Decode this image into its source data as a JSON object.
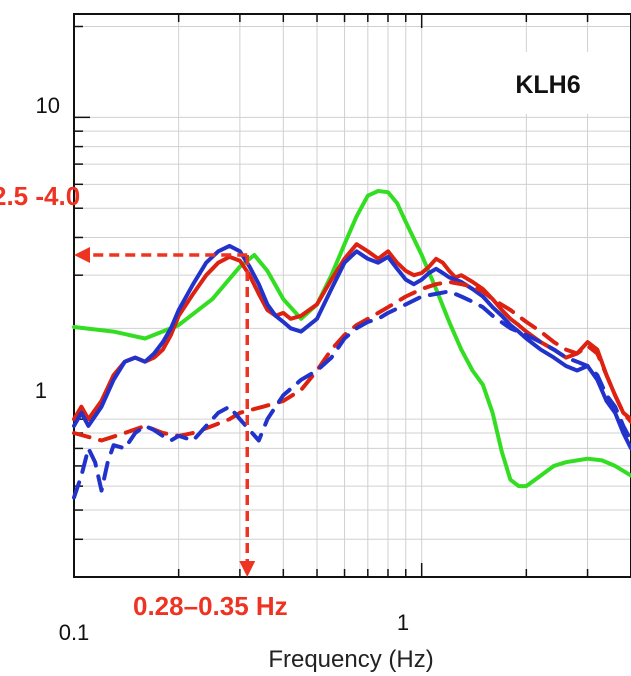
{
  "chart_data": {
    "type": "line",
    "title": "",
    "station_label": "KLH6",
    "xlabel": "Frequency (Hz)",
    "ylabel": "",
    "x_scale": "log",
    "y_scale": "log",
    "xlim": [
      0.1,
      4.0
    ],
    "ylim": [
      0.3,
      22
    ],
    "x_tick_labels": [
      {
        "value": 0.1,
        "label": "0.1"
      },
      {
        "value": 1,
        "label": "1"
      }
    ],
    "y_tick_labels": [
      {
        "value": 1,
        "label": "1"
      },
      {
        "value": 10,
        "label": "10"
      }
    ],
    "grid": true,
    "legend": "none",
    "annotations": {
      "amplitude": {
        "text": "2.5 -4.0",
        "value": 3.5,
        "color": "#ee3322"
      },
      "frequency": {
        "text": "0.28–0.35 Hz",
        "value": 0.315,
        "color": "#ee3322"
      },
      "one_label": "1"
    },
    "series": [
      {
        "color": "#33dd22",
        "dash": "solid",
        "points": [
          [
            0.1,
            2.02
          ],
          [
            0.13,
            1.95
          ],
          [
            0.16,
            1.85
          ],
          [
            0.2,
            2.05
          ],
          [
            0.25,
            2.5
          ],
          [
            0.3,
            3.2
          ],
          [
            0.33,
            3.5
          ],
          [
            0.36,
            3.1
          ],
          [
            0.4,
            2.5
          ],
          [
            0.45,
            2.15
          ],
          [
            0.5,
            2.4
          ],
          [
            0.55,
            3.0
          ],
          [
            0.6,
            3.8
          ],
          [
            0.65,
            4.7
          ],
          [
            0.7,
            5.5
          ],
          [
            0.75,
            5.7
          ],
          [
            0.8,
            5.65
          ],
          [
            0.85,
            5.2
          ],
          [
            0.9,
            4.5
          ],
          [
            1.0,
            3.5
          ],
          [
            1.1,
            2.7
          ],
          [
            1.2,
            2.1
          ],
          [
            1.3,
            1.7
          ],
          [
            1.4,
            1.45
          ],
          [
            1.5,
            1.3
          ],
          [
            1.6,
            1.05
          ],
          [
            1.7,
            0.78
          ],
          [
            1.8,
            0.63
          ],
          [
            1.9,
            0.6
          ],
          [
            2.0,
            0.6
          ],
          [
            2.2,
            0.65
          ],
          [
            2.4,
            0.7
          ],
          [
            2.6,
            0.72
          ],
          [
            2.8,
            0.73
          ],
          [
            3.0,
            0.74
          ],
          [
            3.3,
            0.73
          ],
          [
            3.6,
            0.7
          ],
          [
            4.0,
            0.65
          ]
        ]
      },
      {
        "color": "#dd2211",
        "dash": "solid",
        "points": [
          [
            0.1,
            1.0
          ],
          [
            0.105,
            1.1
          ],
          [
            0.11,
            1.0
          ],
          [
            0.12,
            1.15
          ],
          [
            0.13,
            1.4
          ],
          [
            0.14,
            1.55
          ],
          [
            0.15,
            1.6
          ],
          [
            0.16,
            1.55
          ],
          [
            0.17,
            1.6
          ],
          [
            0.18,
            1.7
          ],
          [
            0.19,
            1.9
          ],
          [
            0.2,
            2.2
          ],
          [
            0.22,
            2.6
          ],
          [
            0.24,
            3.0
          ],
          [
            0.26,
            3.3
          ],
          [
            0.28,
            3.45
          ],
          [
            0.3,
            3.35
          ],
          [
            0.32,
            3.0
          ],
          [
            0.34,
            2.6
          ],
          [
            0.36,
            2.3
          ],
          [
            0.38,
            2.2
          ],
          [
            0.4,
            2.25
          ],
          [
            0.42,
            2.15
          ],
          [
            0.45,
            2.2
          ],
          [
            0.5,
            2.4
          ],
          [
            0.55,
            2.9
          ],
          [
            0.6,
            3.4
          ],
          [
            0.65,
            3.8
          ],
          [
            0.7,
            3.6
          ],
          [
            0.75,
            3.4
          ],
          [
            0.8,
            3.6
          ],
          [
            0.85,
            3.3
          ],
          [
            0.9,
            3.1
          ],
          [
            0.95,
            3.0
          ],
          [
            1.0,
            3.05
          ],
          [
            1.05,
            3.2
          ],
          [
            1.1,
            3.4
          ],
          [
            1.15,
            3.3
          ],
          [
            1.2,
            3.1
          ],
          [
            1.25,
            2.95
          ],
          [
            1.3,
            3.0
          ],
          [
            1.4,
            2.85
          ],
          [
            1.5,
            2.7
          ],
          [
            1.6,
            2.5
          ],
          [
            1.7,
            2.3
          ],
          [
            1.8,
            2.15
          ],
          [
            1.9,
            2.05
          ],
          [
            2.0,
            1.95
          ],
          [
            2.2,
            1.8
          ],
          [
            2.4,
            1.7
          ],
          [
            2.6,
            1.6
          ],
          [
            2.8,
            1.65
          ],
          [
            3.0,
            1.8
          ],
          [
            3.2,
            1.7
          ],
          [
            3.4,
            1.4
          ],
          [
            3.6,
            1.2
          ],
          [
            3.8,
            1.05
          ],
          [
            4.0,
            1.0
          ]
        ]
      },
      {
        "color": "#2233cc",
        "dash": "solid",
        "points": [
          [
            0.1,
            0.95
          ],
          [
            0.105,
            1.05
          ],
          [
            0.11,
            0.95
          ],
          [
            0.12,
            1.1
          ],
          [
            0.13,
            1.35
          ],
          [
            0.14,
            1.55
          ],
          [
            0.15,
            1.6
          ],
          [
            0.16,
            1.55
          ],
          [
            0.17,
            1.65
          ],
          [
            0.18,
            1.8
          ],
          [
            0.19,
            2.0
          ],
          [
            0.2,
            2.3
          ],
          [
            0.22,
            2.8
          ],
          [
            0.24,
            3.3
          ],
          [
            0.26,
            3.6
          ],
          [
            0.28,
            3.75
          ],
          [
            0.3,
            3.6
          ],
          [
            0.32,
            3.2
          ],
          [
            0.34,
            2.8
          ],
          [
            0.36,
            2.4
          ],
          [
            0.38,
            2.2
          ],
          [
            0.4,
            2.1
          ],
          [
            0.42,
            2.0
          ],
          [
            0.45,
            1.95
          ],
          [
            0.5,
            2.15
          ],
          [
            0.55,
            2.7
          ],
          [
            0.6,
            3.3
          ],
          [
            0.65,
            3.6
          ],
          [
            0.7,
            3.4
          ],
          [
            0.75,
            3.3
          ],
          [
            0.8,
            3.45
          ],
          [
            0.85,
            3.15
          ],
          [
            0.9,
            2.9
          ],
          [
            0.95,
            2.8
          ],
          [
            1.0,
            2.9
          ],
          [
            1.05,
            3.05
          ],
          [
            1.1,
            3.15
          ],
          [
            1.15,
            3.05
          ],
          [
            1.2,
            2.95
          ],
          [
            1.3,
            2.85
          ],
          [
            1.4,
            2.7
          ],
          [
            1.5,
            2.55
          ],
          [
            1.6,
            2.35
          ],
          [
            1.7,
            2.2
          ],
          [
            1.8,
            2.05
          ],
          [
            1.9,
            1.95
          ],
          [
            2.0,
            1.85
          ],
          [
            2.2,
            1.7
          ],
          [
            2.4,
            1.6
          ],
          [
            2.6,
            1.5
          ],
          [
            2.8,
            1.45
          ],
          [
            3.0,
            1.5
          ],
          [
            3.2,
            1.35
          ],
          [
            3.4,
            1.15
          ],
          [
            3.6,
            1.05
          ],
          [
            3.8,
            0.9
          ],
          [
            4.0,
            0.8
          ]
        ]
      },
      {
        "color": "#dd2211",
        "dash": "dashed",
        "points": [
          [
            0.1,
            0.9
          ],
          [
            0.12,
            0.85
          ],
          [
            0.14,
            0.9
          ],
          [
            0.16,
            0.95
          ],
          [
            0.18,
            0.9
          ],
          [
            0.2,
            0.88
          ],
          [
            0.22,
            0.9
          ],
          [
            0.25,
            0.95
          ],
          [
            0.28,
            1.0
          ],
          [
            0.3,
            1.05
          ],
          [
            0.35,
            1.1
          ],
          [
            0.4,
            1.15
          ],
          [
            0.45,
            1.25
          ],
          [
            0.5,
            1.45
          ],
          [
            0.55,
            1.7
          ],
          [
            0.6,
            1.9
          ],
          [
            0.65,
            2.05
          ],
          [
            0.7,
            2.15
          ],
          [
            0.75,
            2.25
          ],
          [
            0.8,
            2.35
          ],
          [
            0.85,
            2.45
          ],
          [
            0.9,
            2.55
          ],
          [
            1.0,
            2.7
          ],
          [
            1.1,
            2.8
          ],
          [
            1.2,
            2.85
          ],
          [
            1.3,
            2.8
          ],
          [
            1.4,
            2.75
          ],
          [
            1.5,
            2.65
          ],
          [
            1.6,
            2.5
          ],
          [
            1.8,
            2.3
          ],
          [
            2.0,
            2.1
          ],
          [
            2.2,
            1.95
          ],
          [
            2.4,
            1.8
          ],
          [
            2.6,
            1.7
          ],
          [
            2.8,
            1.65
          ],
          [
            3.0,
            1.75
          ],
          [
            3.2,
            1.65
          ],
          [
            3.4,
            1.4
          ],
          [
            3.6,
            1.2
          ],
          [
            3.8,
            1.05
          ],
          [
            4.0,
            0.98
          ]
        ]
      },
      {
        "color": "#2233cc",
        "dash": "dashed",
        "points": [
          [
            0.1,
            0.55
          ],
          [
            0.105,
            0.65
          ],
          [
            0.11,
            0.8
          ],
          [
            0.115,
            0.72
          ],
          [
            0.12,
            0.58
          ],
          [
            0.125,
            0.72
          ],
          [
            0.13,
            0.82
          ],
          [
            0.14,
            0.8
          ],
          [
            0.15,
            0.9
          ],
          [
            0.16,
            0.95
          ],
          [
            0.17,
            0.92
          ],
          [
            0.18,
            0.88
          ],
          [
            0.19,
            0.85
          ],
          [
            0.2,
            0.88
          ],
          [
            0.22,
            0.85
          ],
          [
            0.24,
            0.95
          ],
          [
            0.26,
            1.05
          ],
          [
            0.28,
            1.1
          ],
          [
            0.3,
            1.0
          ],
          [
            0.32,
            0.92
          ],
          [
            0.34,
            0.85
          ],
          [
            0.36,
            1.0
          ],
          [
            0.38,
            1.1
          ],
          [
            0.4,
            1.2
          ],
          [
            0.45,
            1.35
          ],
          [
            0.5,
            1.45
          ],
          [
            0.55,
            1.6
          ],
          [
            0.6,
            1.85
          ],
          [
            0.65,
            2.0
          ],
          [
            0.7,
            2.1
          ],
          [
            0.75,
            2.15
          ],
          [
            0.8,
            2.25
          ],
          [
            0.9,
            2.4
          ],
          [
            1.0,
            2.55
          ],
          [
            1.1,
            2.6
          ],
          [
            1.2,
            2.65
          ],
          [
            1.3,
            2.55
          ],
          [
            1.4,
            2.45
          ],
          [
            1.5,
            2.35
          ],
          [
            1.6,
            2.2
          ],
          [
            1.8,
            2.0
          ],
          [
            2.0,
            1.9
          ],
          [
            2.2,
            1.8
          ],
          [
            2.4,
            1.7
          ],
          [
            2.6,
            1.6
          ],
          [
            2.8,
            1.55
          ],
          [
            3.0,
            1.5
          ],
          [
            3.2,
            1.4
          ],
          [
            3.4,
            1.2
          ],
          [
            3.6,
            1.1
          ],
          [
            3.8,
            0.95
          ],
          [
            4.0,
            0.85
          ]
        ]
      }
    ]
  }
}
